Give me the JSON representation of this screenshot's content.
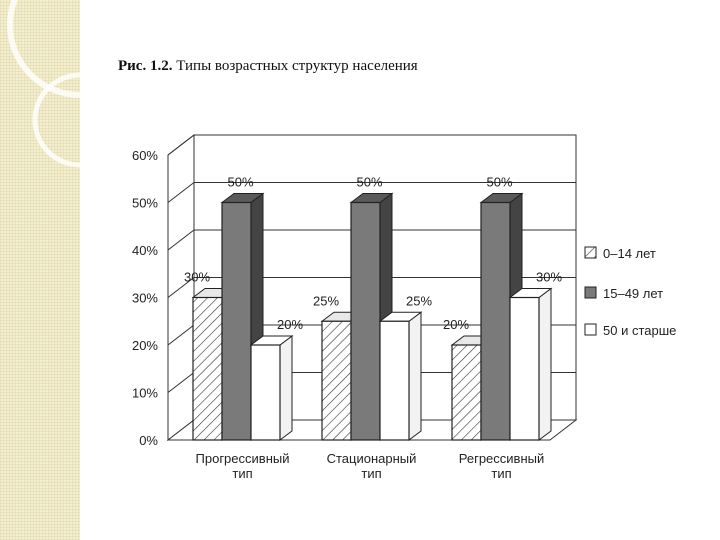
{
  "caption": {
    "number": "Рис. 1.2.",
    "text": "Типы возрастных структур населения"
  },
  "colors": {
    "series_0_14": "#ffffff",
    "series_15_49": "#7a7a7a",
    "series_50plus": "#ffffff",
    "grid": "#333333"
  },
  "chart_data": {
    "type": "bar",
    "title": "",
    "xlabel": "",
    "ylabel": "",
    "ylim": [
      0,
      60
    ],
    "yticks": [
      "0%",
      "10%",
      "20%",
      "30%",
      "40%",
      "50%",
      "60%"
    ],
    "categories": [
      [
        "Прогрессивный",
        "тип"
      ],
      [
        "Стационарный",
        "тип"
      ],
      [
        "Регрессивный",
        "тип"
      ]
    ],
    "series": [
      {
        "name": "0–14 лет",
        "values": [
          30,
          25,
          20
        ],
        "labels": [
          "30%",
          "25%",
          "20%"
        ],
        "pattern": "hatched"
      },
      {
        "name": "15–49 лет",
        "values": [
          50,
          50,
          50
        ],
        "labels": [
          "50%",
          "50%",
          "50%"
        ],
        "pattern": "solid-gray"
      },
      {
        "name": "50 и старше",
        "values": [
          20,
          25,
          30
        ],
        "labels": [
          "20%",
          "25%",
          "30%"
        ],
        "pattern": "white"
      }
    ],
    "legend": "right",
    "grid": true
  }
}
